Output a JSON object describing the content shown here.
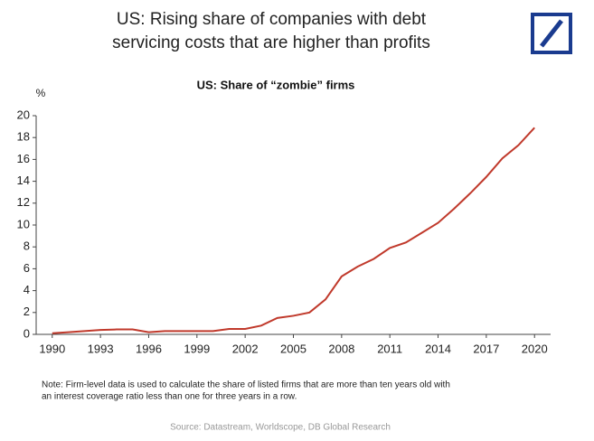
{
  "header": {
    "title_lines": [
      "US: Rising share of companies with debt",
      "servicing costs that are higher than profits"
    ]
  },
  "chart_data": {
    "type": "line",
    "title": "US: Share of “zombie” firms",
    "y_label": "%",
    "x": [
      1990,
      1991,
      1992,
      1993,
      1994,
      1995,
      1996,
      1997,
      1998,
      1999,
      2000,
      2001,
      2002,
      2003,
      2004,
      2005,
      2006,
      2007,
      2008,
      2009,
      2010,
      2011,
      2012,
      2013,
      2014,
      2015,
      2016,
      2017,
      2018,
      2019,
      2020
    ],
    "series": [
      {
        "name": "Share of zombie firms",
        "color": "#c0392b",
        "values": [
          0.1,
          0.2,
          0.3,
          0.4,
          0.45,
          0.45,
          0.2,
          0.3,
          0.3,
          0.3,
          0.3,
          0.5,
          0.5,
          0.8,
          1.5,
          1.7,
          2.0,
          3.2,
          5.3,
          6.2,
          6.9,
          7.9,
          8.4,
          9.3,
          10.2,
          11.5,
          12.9,
          14.4,
          16.1,
          17.3,
          18.9
        ]
      }
    ],
    "xlim": [
      1989,
      2021
    ],
    "xticks": [
      1990,
      1993,
      1996,
      1999,
      2002,
      2005,
      2008,
      2011,
      2014,
      2017,
      2020
    ],
    "ylim": [
      0,
      20
    ],
    "yticks": [
      0,
      2,
      4,
      6,
      8,
      10,
      12,
      14,
      16,
      18,
      20
    ],
    "grid": false
  },
  "footer": {
    "note_lines": [
      "Note: Firm-level data is used to calculate the share of listed firms that are more than ten years old with",
      "an interest coverage ratio less than one for three years in a row."
    ],
    "source": "Source: Datastream, Worldscope, DB Global Research"
  }
}
